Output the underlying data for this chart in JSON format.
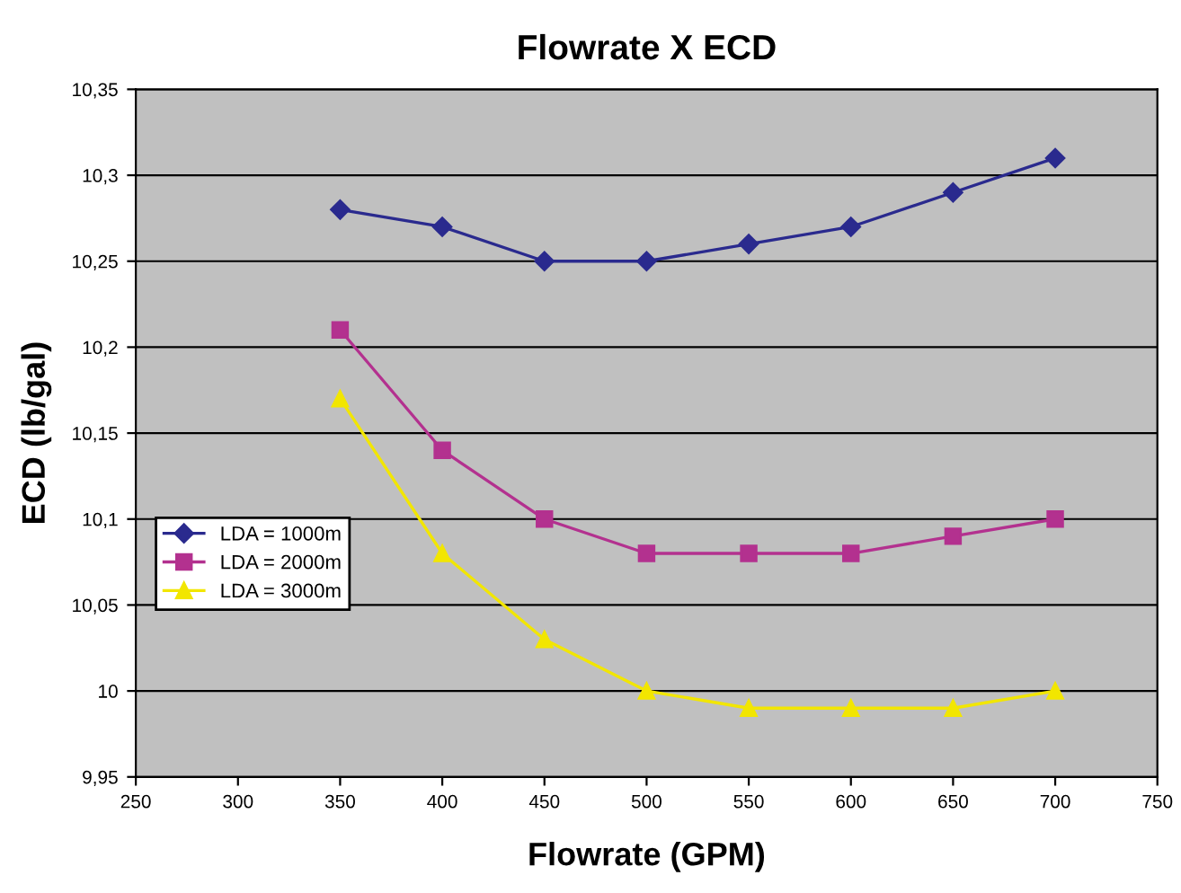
{
  "chart_data": {
    "type": "line",
    "title": "Flowrate X ECD",
    "xlabel": "Flowrate (GPM)",
    "ylabel": "ECD (lb/gal)",
    "x": [
      350,
      400,
      450,
      500,
      550,
      600,
      650,
      700
    ],
    "series": [
      {
        "name": "LDA = 1000m",
        "color": "#2a2a8e",
        "marker": "diamond",
        "values": [
          10.28,
          10.27,
          10.25,
          10.25,
          10.26,
          10.27,
          10.29,
          10.31
        ]
      },
      {
        "name": "LDA = 2000m",
        "color": "#b3318f",
        "marker": "square",
        "values": [
          10.21,
          10.14,
          10.1,
          10.08,
          10.08,
          10.08,
          10.09,
          10.1
        ]
      },
      {
        "name": "LDA = 3000m",
        "color": "#f2e600",
        "marker": "triangle",
        "values": [
          10.17,
          10.08,
          10.03,
          10.0,
          9.99,
          9.99,
          9.99,
          10.0
        ]
      }
    ],
    "xlim": [
      250,
      750
    ],
    "xticks": [
      250,
      300,
      350,
      400,
      450,
      500,
      550,
      600,
      650,
      700,
      750
    ],
    "ylim": [
      9.95,
      10.35
    ],
    "yticks": [
      {
        "value": 9.95,
        "label": "9,95"
      },
      10,
      {
        "value": 10.05,
        "label": "10,05"
      },
      {
        "value": 10.1,
        "label": "10,1"
      },
      {
        "value": 10.15,
        "label": "10,15"
      },
      {
        "value": 10.2,
        "label": "10,2"
      },
      {
        "value": 10.25,
        "label": "10,25"
      },
      {
        "value": 10.3,
        "label": "10,3"
      },
      {
        "value": 10.35,
        "label": "10,35"
      }
    ],
    "grid": "y",
    "legend": "center left",
    "line_style": "solid"
  }
}
